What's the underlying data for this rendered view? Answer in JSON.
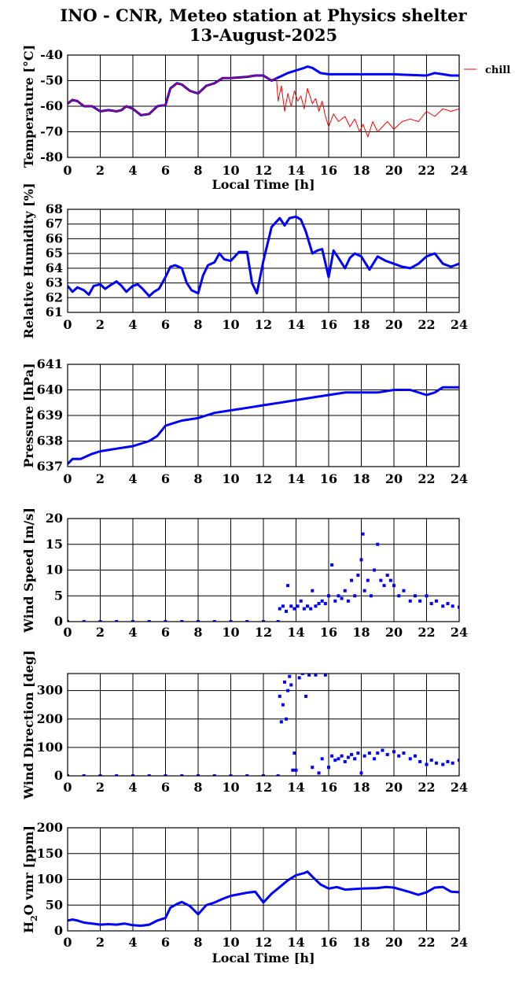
{
  "title": {
    "line1": "INO - CNR, Meteo station at Physics shelter",
    "line2": "13-August-2025"
  },
  "colors": {
    "primary_series": "#0000ff",
    "secondary_series": "#ff0000",
    "overlap_series": "#8000a0",
    "grid": "#000000"
  },
  "chart_data": [
    {
      "id": "temperature",
      "type": "line",
      "ylabel": "Temperature [°C]",
      "xlabel": "Local Time [h]",
      "xlim": [
        0,
        24
      ],
      "ylim": [
        -80,
        -40
      ],
      "xticks": [
        0,
        2,
        4,
        6,
        8,
        10,
        12,
        14,
        16,
        18,
        20,
        22,
        24
      ],
      "yticks": [
        -80,
        -70,
        -60,
        -50,
        -40
      ],
      "grid": true,
      "legend": "top-right, outside plot",
      "series": [
        {
          "name": "",
          "color": "#0000ff",
          "x": [
            0,
            0.3,
            0.6,
            1,
            1.5,
            2,
            2.5,
            3,
            3.3,
            3.6,
            4,
            4.5,
            5,
            5.5,
            6,
            6.3,
            6.7,
            7,
            7.5,
            8,
            8.5,
            9,
            9.5,
            10,
            11,
            11.5,
            12,
            12.5,
            13,
            13.5,
            14,
            14.5,
            14.7,
            15,
            15.5,
            16,
            17,
            18,
            19,
            20,
            21,
            22,
            22.5,
            23,
            23.5,
            24
          ],
          "y": [
            -59,
            -57.5,
            -58,
            -60,
            -60,
            -62,
            -61.5,
            -62,
            -61.5,
            -60,
            -61,
            -63.5,
            -63,
            -60,
            -59.5,
            -53,
            -51,
            -51.5,
            -54,
            -55,
            -52,
            -51,
            -49,
            -49,
            -48.5,
            -48,
            -48,
            -50,
            -48.5,
            -47,
            -46,
            -45,
            -44.5,
            -45,
            -47,
            -47.5,
            -47.5,
            -47.5,
            -47.5,
            -47.5,
            -47.8,
            -48,
            -47,
            -47.5,
            -48,
            -48
          ]
        },
        {
          "name": "chill",
          "color": "#ff0000",
          "x": [
            0,
            0.3,
            0.6,
            1,
            1.5,
            2,
            2.5,
            3,
            3.3,
            3.6,
            4,
            4.5,
            5,
            5.5,
            6,
            6.3,
            6.7,
            7,
            7.5,
            8,
            8.5,
            9,
            9.5,
            10,
            11,
            11.5,
            12,
            12.5,
            12.8,
            12.9,
            13.1,
            13.3,
            13.5,
            13.7,
            13.9,
            14.1,
            14.3,
            14.5,
            14.7,
            15,
            15.2,
            15.4,
            15.6,
            15.8,
            16,
            16.3,
            16.6,
            17,
            17.3,
            17.6,
            17.9,
            18.1,
            18.4,
            18.7,
            19,
            19.3,
            19.6,
            20,
            20.5,
            21,
            21.5,
            22,
            22.5,
            23,
            23.5,
            24
          ],
          "y": [
            -59,
            -57.5,
            -58,
            -60,
            -60,
            -62,
            -61.5,
            -62,
            -61.5,
            -60,
            -61,
            -63.5,
            -63,
            -60,
            -59.5,
            -53,
            -51,
            -51.5,
            -54,
            -55,
            -52,
            -51,
            -49,
            -49,
            -48.5,
            -48,
            -48,
            -50,
            -49,
            -58,
            -52,
            -62,
            -55,
            -60,
            -54,
            -58,
            -56,
            -61,
            -53,
            -59,
            -57,
            -62,
            -58,
            -64,
            -68,
            -63,
            -66,
            -64,
            -68,
            -65,
            -70,
            -67,
            -72,
            -66,
            -70,
            -68,
            -66,
            -69,
            -66,
            -65,
            -66,
            -62,
            -64,
            -61,
            -62,
            -61
          ]
        }
      ]
    },
    {
      "id": "humidity",
      "type": "line",
      "ylabel": "Relative Humidity [%]",
      "xlabel": "",
      "xlim": [
        0,
        24
      ],
      "ylim": [
        61,
        68
      ],
      "xticks": [
        0,
        2,
        4,
        6,
        8,
        10,
        12,
        14,
        16,
        18,
        20,
        22,
        24
      ],
      "yticks": [
        61,
        62,
        63,
        64,
        65,
        66,
        67,
        68
      ],
      "grid": true,
      "series": [
        {
          "name": "",
          "color": "#0000ff",
          "x": [
            0,
            0.3,
            0.6,
            1,
            1.3,
            1.6,
            2,
            2.3,
            2.7,
            3,
            3.3,
            3.6,
            4,
            4.3,
            4.6,
            5,
            5.3,
            5.6,
            6,
            6.3,
            6.6,
            7,
            7.3,
            7.6,
            8,
            8.3,
            8.6,
            9,
            9.3,
            9.6,
            10,
            10.5,
            11,
            11.3,
            11.6,
            12,
            12.5,
            13,
            13.3,
            13.6,
            14,
            14.3,
            14.6,
            15,
            15.3,
            15.6,
            16,
            16.3,
            16.6,
            17,
            17.3,
            17.6,
            18,
            18.5,
            19,
            19.5,
            20,
            20.5,
            21,
            21.5,
            22,
            22.5,
            23,
            23.5,
            24
          ],
          "y": [
            62.8,
            62.4,
            62.7,
            62.5,
            62.2,
            62.8,
            62.9,
            62.6,
            62.9,
            63.1,
            62.8,
            62.4,
            62.8,
            62.9,
            62.6,
            62.1,
            62.4,
            62.6,
            63.4,
            64.1,
            64.2,
            64,
            63,
            62.5,
            62.3,
            63.5,
            64.2,
            64.4,
            65,
            64.6,
            64.5,
            65.1,
            65.1,
            63,
            62.3,
            64.5,
            66.8,
            67.4,
            66.9,
            67.4,
            67.5,
            67.3,
            66.5,
            65,
            65.2,
            65.3,
            63.4,
            65.2,
            64.7,
            64,
            64.7,
            65,
            64.8,
            63.9,
            64.8,
            64.5,
            64.3,
            64.1,
            64,
            64.3,
            64.8,
            65,
            64.3,
            64.1,
            64.3
          ]
        }
      ]
    },
    {
      "id": "pressure",
      "type": "line",
      "ylabel": "Pressure [hPa]",
      "xlabel": "",
      "xlim": [
        0,
        24
      ],
      "ylim": [
        637,
        641
      ],
      "xticks": [
        0,
        2,
        4,
        6,
        8,
        10,
        12,
        14,
        16,
        18,
        20,
        22,
        24
      ],
      "yticks": [
        637,
        638,
        639,
        640,
        641
      ],
      "grid": true,
      "series": [
        {
          "name": "",
          "color": "#0000ff",
          "x": [
            0,
            0.3,
            0.8,
            1.5,
            2,
            3,
            4,
            5,
            5.5,
            6,
            6.5,
            7,
            8,
            8.5,
            9,
            10,
            11,
            12,
            13,
            14,
            15,
            16,
            17,
            18,
            19,
            20,
            21,
            22,
            22.5,
            23,
            23.5,
            24
          ],
          "y": [
            637.1,
            637.3,
            637.3,
            637.5,
            637.6,
            637.7,
            637.8,
            638,
            638.2,
            638.6,
            638.7,
            638.8,
            638.9,
            639,
            639.1,
            639.2,
            639.3,
            639.4,
            639.5,
            639.6,
            639.7,
            639.8,
            639.9,
            639.9,
            639.9,
            640,
            640,
            639.8,
            639.9,
            640.1,
            640.1,
            640.1
          ]
        }
      ]
    },
    {
      "id": "wind_speed",
      "type": "scatter",
      "ylabel": "Wind Speed [m/s]",
      "xlabel": "",
      "xlim": [
        0,
        24
      ],
      "ylim": [
        0,
        20
      ],
      "xticks": [
        0,
        2,
        4,
        6,
        8,
        10,
        12,
        14,
        16,
        18,
        20,
        22,
        24
      ],
      "yticks": [
        0,
        5,
        10,
        15,
        20
      ],
      "grid": true,
      "series": [
        {
          "name": "",
          "color": "#0000ff",
          "x": [
            0,
            1,
            2,
            3,
            4,
            5,
            6,
            7,
            8,
            9,
            10,
            11,
            12,
            12.9,
            13,
            13.2,
            13.4,
            13.5,
            13.7,
            13.9,
            14.1,
            14.3,
            14.5,
            14.7,
            14.9,
            15,
            15.2,
            15.4,
            15.6,
            15.8,
            16,
            16.2,
            16.4,
            16.6,
            16.8,
            17,
            17.2,
            17.4,
            17.6,
            17.8,
            18,
            18.1,
            18.2,
            18.4,
            18.6,
            18.8,
            19,
            19.2,
            19.4,
            19.6,
            19.8,
            20,
            20.3,
            20.6,
            21,
            21.3,
            21.6,
            22,
            22.3,
            22.6,
            23,
            23.3,
            23.6,
            24
          ],
          "y": [
            0,
            0,
            0,
            0,
            0,
            0,
            0,
            0,
            0,
            0,
            0,
            0,
            0,
            0,
            2.5,
            3,
            2,
            7,
            3,
            2.5,
            3,
            4,
            2.5,
            3,
            2.5,
            6,
            3,
            3.5,
            4,
            3.5,
            5,
            11,
            4,
            5,
            4.5,
            6,
            4,
            8,
            5,
            9,
            12,
            17,
            6,
            8,
            5,
            10,
            15,
            8,
            7,
            9,
            8,
            7,
            5,
            6,
            4,
            5,
            4,
            5,
            3.5,
            4,
            3,
            3.5,
            3,
            2.8
          ]
        }
      ]
    },
    {
      "id": "wind_direction",
      "type": "scatter",
      "ylabel": "Wind Direction [deg]",
      "xlabel": "",
      "xlim": [
        0,
        24
      ],
      "ylim": [
        0,
        360
      ],
      "xticks": [
        0,
        2,
        4,
        6,
        8,
        10,
        12,
        14,
        16,
        18,
        20,
        22,
        24
      ],
      "yticks": [
        0,
        100,
        200,
        300
      ],
      "grid": true,
      "series": [
        {
          "name": "",
          "color": "#0000ff",
          "x": [
            0,
            1,
            2,
            3,
            4,
            5,
            6,
            7,
            8,
            9,
            10,
            11,
            12,
            12.9,
            13,
            13.1,
            13.2,
            13.3,
            13.4,
            13.5,
            13.6,
            13.7,
            13.8,
            13.9,
            14,
            14.2,
            14.4,
            14.6,
            14.8,
            15,
            15.2,
            15.4,
            15.6,
            15.8,
            16,
            16.2,
            16.4,
            16.6,
            16.8,
            17,
            17.2,
            17.4,
            17.6,
            17.8,
            18,
            18.2,
            18.5,
            18.8,
            19,
            19.3,
            19.6,
            20,
            20.3,
            20.6,
            21,
            21.3,
            21.6,
            22,
            22.3,
            22.6,
            23,
            23.3,
            23.6,
            24
          ],
          "y": [
            0,
            0,
            0,
            0,
            0,
            0,
            0,
            0,
            0,
            0,
            0,
            0,
            0,
            0,
            280,
            190,
            250,
            330,
            200,
            300,
            350,
            320,
            20,
            80,
            20,
            345,
            360,
            280,
            355,
            30,
            355,
            10,
            60,
            355,
            30,
            70,
            55,
            60,
            70,
            50,
            65,
            75,
            60,
            80,
            10,
            70,
            80,
            60,
            80,
            90,
            75,
            85,
            70,
            80,
            60,
            70,
            50,
            40,
            55,
            45,
            40,
            50,
            45,
            55
          ]
        }
      ]
    },
    {
      "id": "h2o_vmr",
      "type": "line",
      "ylabel": "H2O vmr [ppm]",
      "xlabel": "Local Time [h]",
      "xlim": [
        0,
        24
      ],
      "ylim": [
        0,
        200
      ],
      "xticks": [
        0,
        2,
        4,
        6,
        8,
        10,
        12,
        14,
        16,
        18,
        20,
        22,
        24
      ],
      "yticks": [
        0,
        50,
        100,
        150,
        200
      ],
      "grid": true,
      "series": [
        {
          "name": "",
          "color": "#0000ff",
          "x": [
            0,
            0.3,
            0.6,
            1,
            1.5,
            2,
            2.5,
            3,
            3.5,
            4,
            4.5,
            5,
            5.5,
            6,
            6.3,
            6.7,
            7,
            7.5,
            8,
            8.5,
            9,
            9.5,
            10,
            11,
            11.5,
            12,
            12.5,
            13,
            13.5,
            14,
            14.5,
            14.7,
            15,
            15.5,
            16,
            16.5,
            17,
            18,
            19,
            19.5,
            20,
            21,
            21.5,
            22,
            22.5,
            23,
            23.5,
            24
          ],
          "y": [
            20,
            22,
            20,
            16,
            14,
            12,
            13,
            12,
            14,
            11,
            10,
            12,
            20,
            25,
            45,
            52,
            56,
            48,
            32,
            50,
            55,
            62,
            68,
            74,
            76,
            55,
            72,
            85,
            98,
            108,
            112,
            115,
            105,
            90,
            82,
            85,
            80,
            82,
            83,
            85,
            84,
            75,
            70,
            75,
            84,
            85,
            76,
            75
          ]
        }
      ]
    }
  ]
}
